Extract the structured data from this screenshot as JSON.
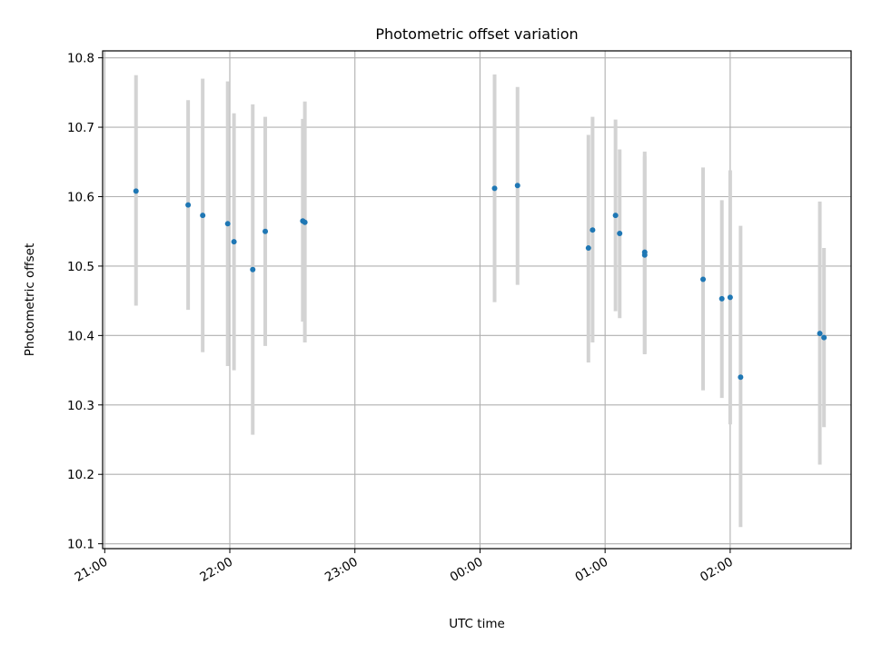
{
  "chart_data": {
    "type": "scatter",
    "title": "Photometric offset variation",
    "xlabel": "UTC time",
    "ylabel": "Photometric offset",
    "x_type": "time",
    "x_ticks": [
      "21:00",
      "22:00",
      "23:00",
      "00:00",
      "01:00",
      "02:00"
    ],
    "y_ticks": [
      "10.1",
      "10.2",
      "10.3",
      "10.4",
      "10.5",
      "10.6",
      "10.7",
      "10.8"
    ],
    "y_tick_values": [
      10.1,
      10.2,
      10.3,
      10.4,
      10.5,
      10.6,
      10.7,
      10.8
    ],
    "ylim": [
      10.093,
      10.81
    ],
    "xlim": [
      "20:59",
      "02:58"
    ],
    "grid": true,
    "point_color": "#1f77b4",
    "errorbar_color": "#d3d3d3",
    "points": [
      {
        "t": "21:15",
        "y": 10.608,
        "ylow": 10.443,
        "yhigh": 10.775
      },
      {
        "t": "21:40",
        "y": 10.588,
        "ylow": 10.437,
        "yhigh": 10.739
      },
      {
        "t": "21:47",
        "y": 10.573,
        "ylow": 10.376,
        "yhigh": 10.77
      },
      {
        "t": "21:59",
        "y": 10.561,
        "ylow": 10.356,
        "yhigh": 10.766
      },
      {
        "t": "22:02",
        "y": 10.535,
        "ylow": 10.35,
        "yhigh": 10.72
      },
      {
        "t": "22:11",
        "y": 10.495,
        "ylow": 10.257,
        "yhigh": 10.733
      },
      {
        "t": "22:17",
        "y": 10.55,
        "ylow": 10.385,
        "yhigh": 10.715
      },
      {
        "t": "22:35",
        "y": 10.565,
        "ylow": 10.42,
        "yhigh": 10.712
      },
      {
        "t": "22:36",
        "y": 10.563,
        "ylow": 10.39,
        "yhigh": 10.737
      },
      {
        "t": "00:07",
        "y": 10.612,
        "ylow": 10.448,
        "yhigh": 10.776
      },
      {
        "t": "00:18",
        "y": 10.616,
        "ylow": 10.473,
        "yhigh": 10.758
      },
      {
        "t": "00:52",
        "y": 10.526,
        "ylow": 10.361,
        "yhigh": 10.689
      },
      {
        "t": "00:54",
        "y": 10.552,
        "ylow": 10.39,
        "yhigh": 10.715
      },
      {
        "t": "01:05",
        "y": 10.573,
        "ylow": 10.435,
        "yhigh": 10.711
      },
      {
        "t": "01:07",
        "y": 10.547,
        "ylow": 10.425,
        "yhigh": 10.668
      },
      {
        "t": "01:19",
        "y": 10.52,
        "ylow": 10.374,
        "yhigh": 10.665
      },
      {
        "t": "01:19",
        "y": 10.516,
        "ylow": 10.373,
        "yhigh": 10.658
      },
      {
        "t": "01:47",
        "y": 10.481,
        "ylow": 10.321,
        "yhigh": 10.642
      },
      {
        "t": "01:56",
        "y": 10.453,
        "ylow": 10.31,
        "yhigh": 10.595
      },
      {
        "t": "02:00",
        "y": 10.455,
        "ylow": 10.272,
        "yhigh": 10.638
      },
      {
        "t": "02:05",
        "y": 10.34,
        "ylow": 10.124,
        "yhigh": 10.558
      },
      {
        "t": "02:43",
        "y": 10.403,
        "ylow": 10.214,
        "yhigh": 10.593
      },
      {
        "t": "02:45",
        "y": 10.397,
        "ylow": 10.268,
        "yhigh": 10.526
      }
    ]
  }
}
